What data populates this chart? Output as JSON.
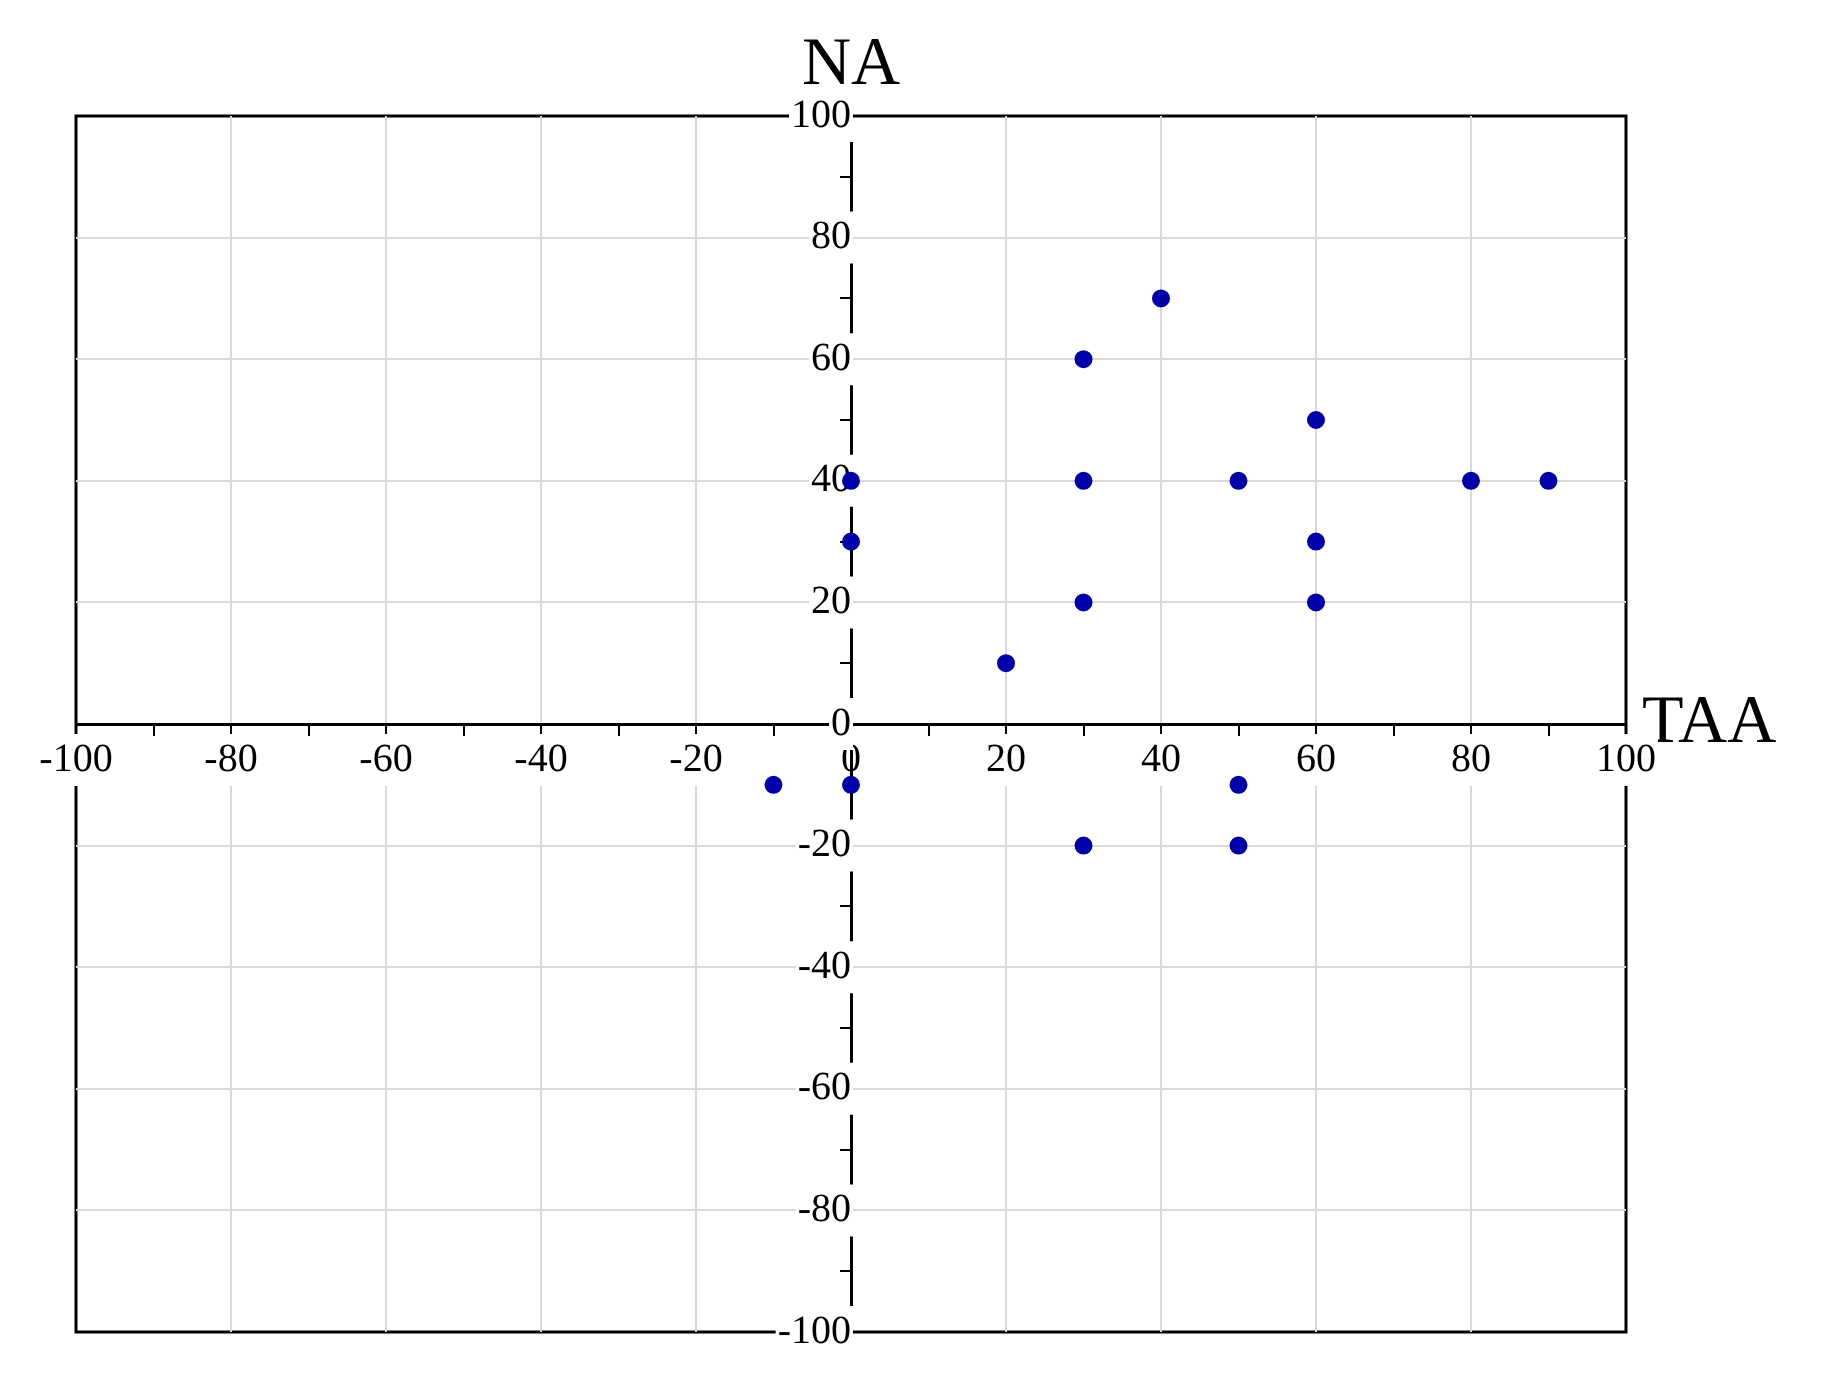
{
  "chart_data": {
    "type": "scatter",
    "xlabel": "TAA",
    "ylabel": "NA",
    "x": [
      0,
      0,
      20,
      30,
      30,
      30,
      40,
      50,
      60,
      60,
      60,
      80,
      90,
      -10,
      0,
      30,
      50,
      50
    ],
    "values": [
      40,
      30,
      10,
      60,
      40,
      20,
      70,
      40,
      50,
      30,
      20,
      40,
      40,
      -10,
      -10,
      -20,
      -10,
      -20
    ],
    "color": "#0000aa",
    "marker": "circle",
    "grid": true,
    "xlim": [
      -100,
      100
    ],
    "ylim": [
      -100,
      100
    ],
    "xticks": [
      -100,
      {
        "value": -90,
        "label": null
      },
      -80,
      {
        "value": -70,
        "label": null
      },
      -60,
      {
        "value": -50,
        "label": null
      },
      -40,
      {
        "value": -30,
        "label": null
      },
      -20,
      {
        "value": -10,
        "label": null
      },
      0,
      {
        "value": 10,
        "label": null
      },
      20,
      {
        "value": 30,
        "label": null
      },
      40,
      {
        "value": 50,
        "label": null
      },
      60,
      {
        "value": 70,
        "label": null
      },
      80,
      {
        "value": 90,
        "label": null
      },
      100
    ],
    "yticks": [
      -100,
      {
        "value": -90,
        "label": null
      },
      -80,
      {
        "value": -70,
        "label": null
      },
      -60,
      {
        "value": -50,
        "label": null
      },
      -40,
      {
        "value": -30,
        "label": null
      },
      -20,
      {
        "value": -10,
        "label": null
      },
      0,
      {
        "value": 10,
        "label": null
      },
      20,
      {
        "value": 30,
        "label": null
      },
      40,
      {
        "value": 50,
        "label": null
      },
      60,
      {
        "value": 70,
        "label": null
      },
      80,
      {
        "value": 90,
        "label": null
      },
      100
    ]
  }
}
